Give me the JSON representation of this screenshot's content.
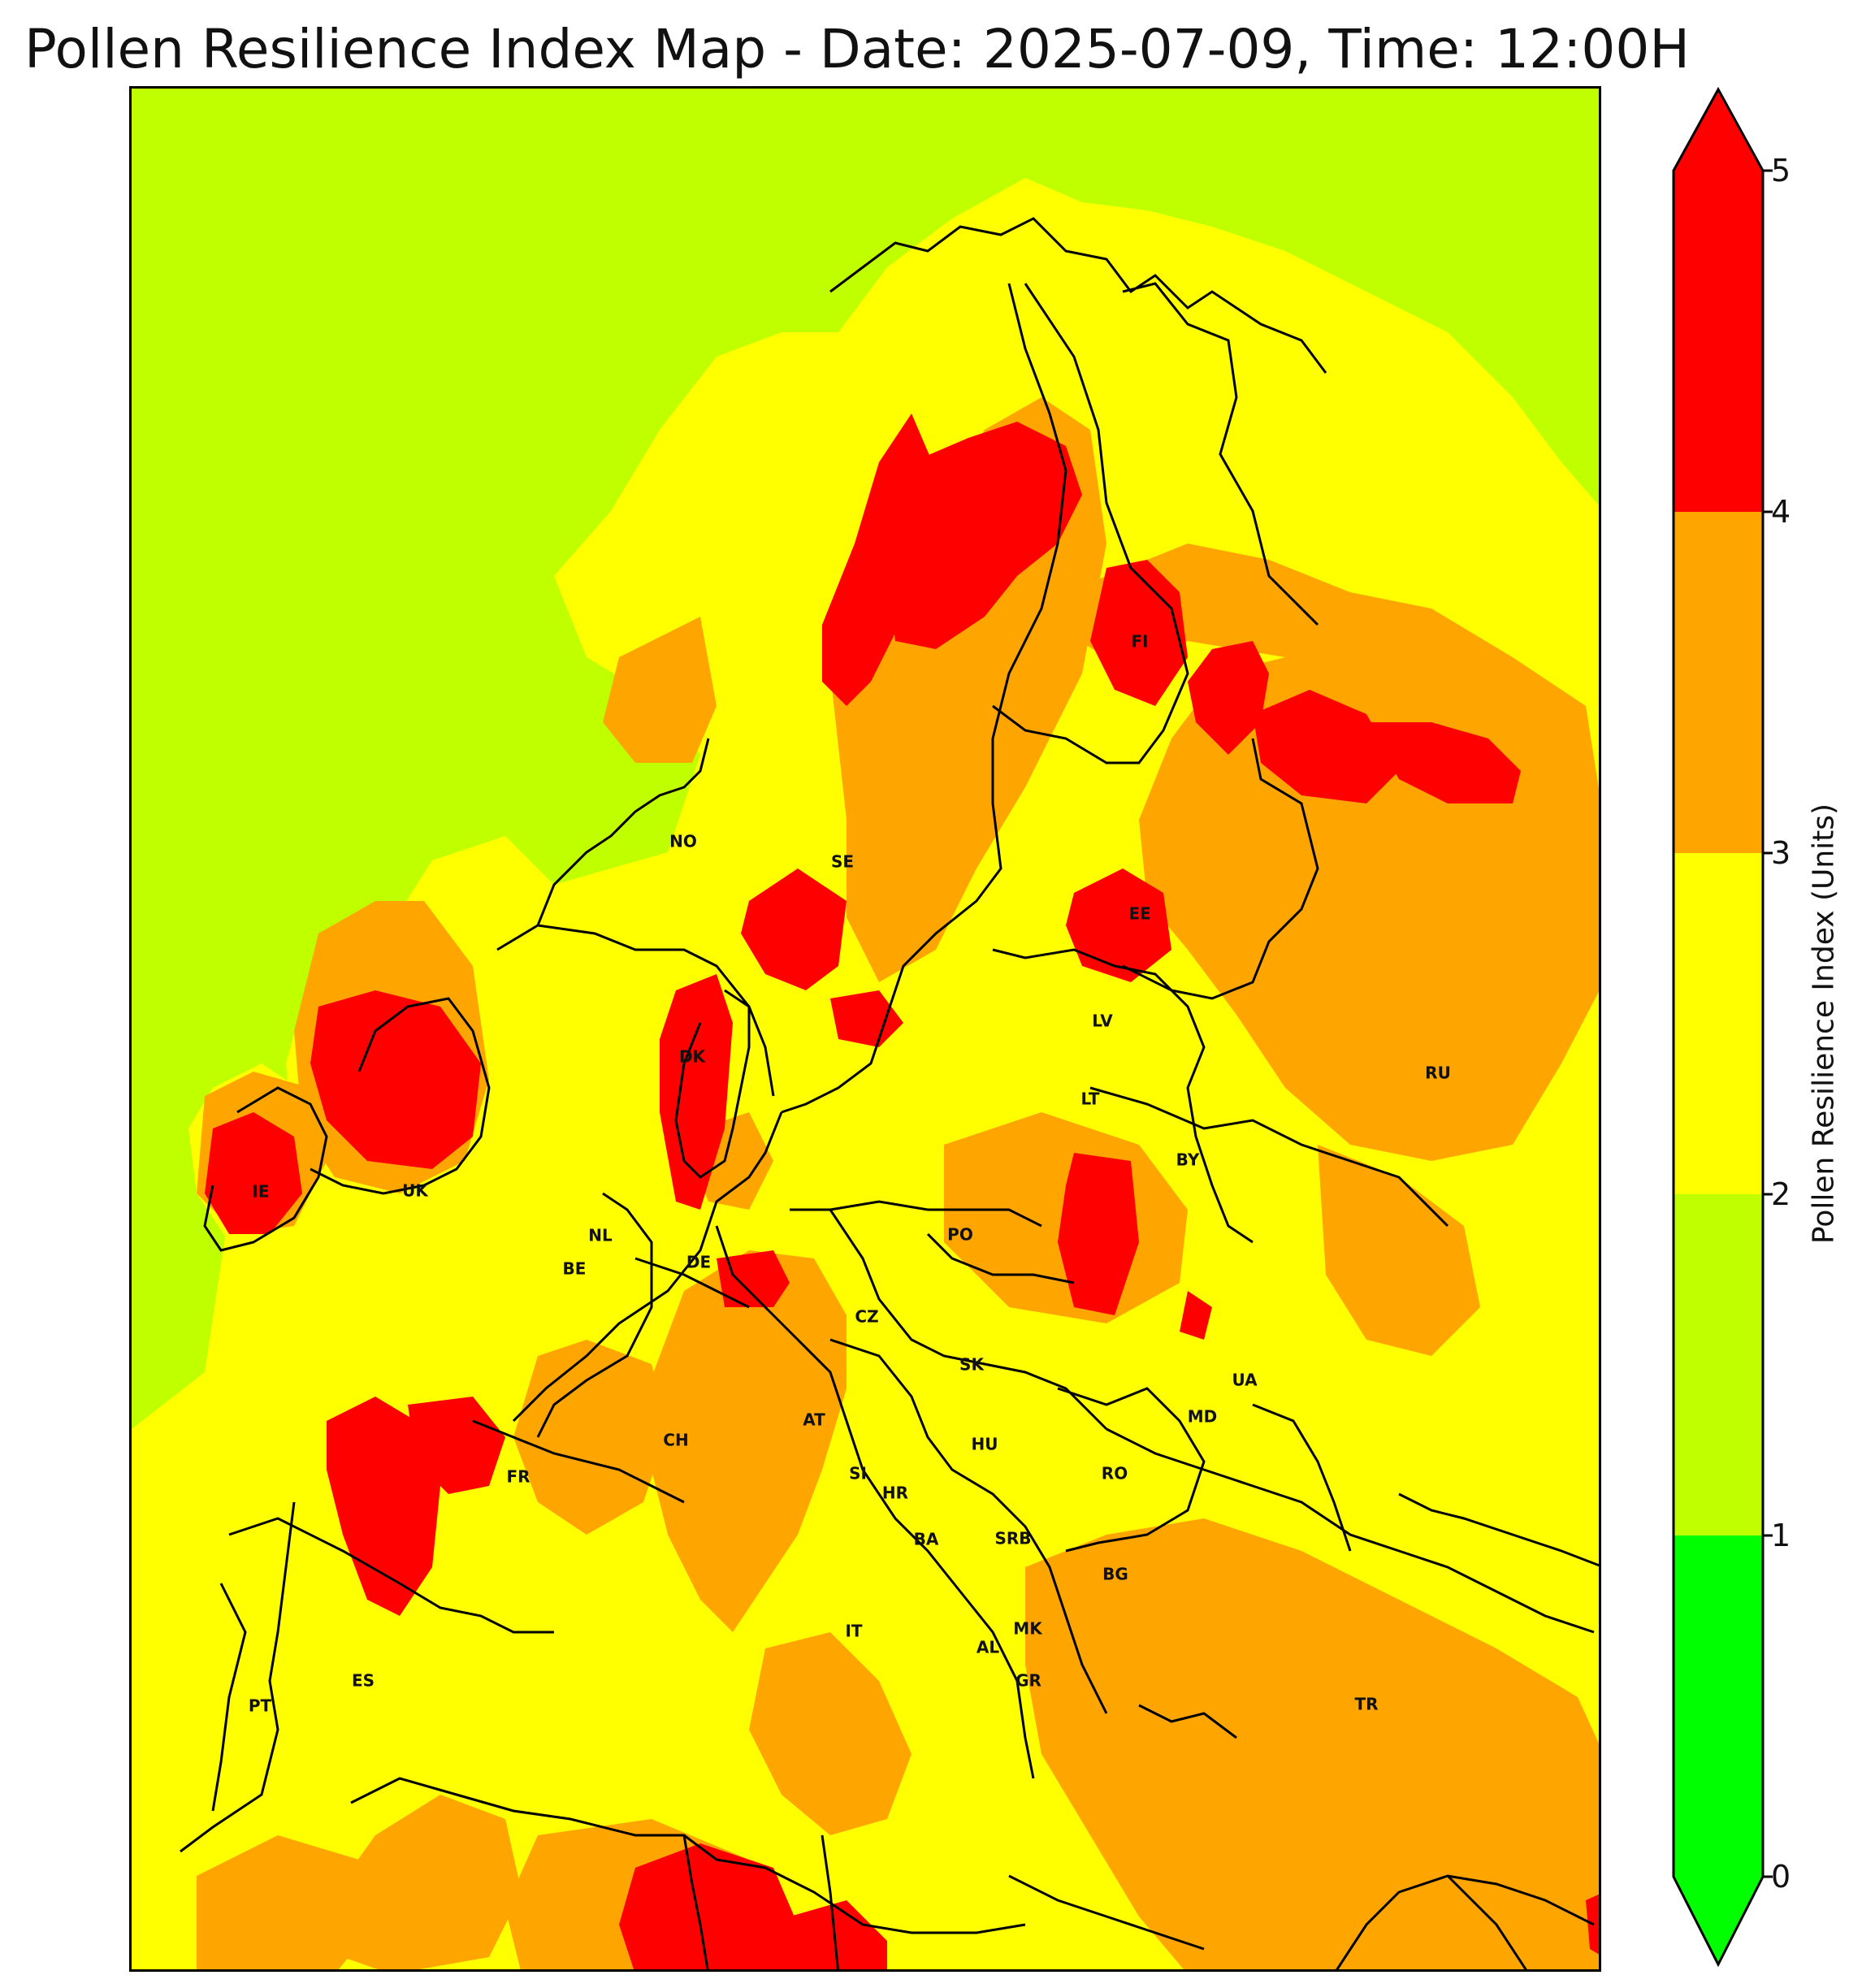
{
  "title": "Pollen Resilience Index Map - Date: 2025-07-09, Time: 12:00H",
  "colorbar": {
    "label": "Pollen Resilience Index (Units)",
    "ticks": [
      "0",
      "1",
      "2",
      "3",
      "4",
      "5"
    ],
    "bands": [
      {
        "range": [
          0,
          1
        ],
        "color": "#00ff00"
      },
      {
        "range": [
          1,
          2
        ],
        "color": "#c0ff00"
      },
      {
        "range": [
          2,
          3
        ],
        "color": "#ffff00"
      },
      {
        "range": [
          3,
          4
        ],
        "color": "#ffa500"
      },
      {
        "range": [
          4,
          5
        ],
        "color": "#ff0000"
      }
    ],
    "extend": "both"
  },
  "countries": [
    {
      "code": "NO"
    },
    {
      "code": "SE"
    },
    {
      "code": "FI"
    },
    {
      "code": "EE"
    },
    {
      "code": "LV"
    },
    {
      "code": "LT"
    },
    {
      "code": "BY"
    },
    {
      "code": "RU"
    },
    {
      "code": "DK"
    },
    {
      "code": "IE"
    },
    {
      "code": "UK"
    },
    {
      "code": "NL"
    },
    {
      "code": "BE"
    },
    {
      "code": "DE"
    },
    {
      "code": "PO"
    },
    {
      "code": "CZ"
    },
    {
      "code": "SK"
    },
    {
      "code": "UA"
    },
    {
      "code": "MD"
    },
    {
      "code": "AT"
    },
    {
      "code": "HU"
    },
    {
      "code": "CH"
    },
    {
      "code": "FR"
    },
    {
      "code": "SI"
    },
    {
      "code": "HR"
    },
    {
      "code": "RO"
    },
    {
      "code": "BA"
    },
    {
      "code": "SRB"
    },
    {
      "code": "BG"
    },
    {
      "code": "MK"
    },
    {
      "code": "AL"
    },
    {
      "code": "IT"
    },
    {
      "code": "GR"
    },
    {
      "code": "ES"
    },
    {
      "code": "PT"
    },
    {
      "code": "TR"
    }
  ]
}
